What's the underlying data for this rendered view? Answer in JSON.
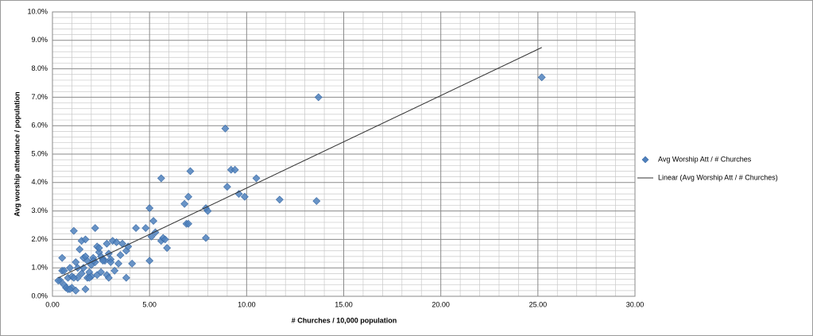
{
  "chart_data": {
    "type": "scatter",
    "xlabel": "# Churches / 10,000 population",
    "ylabel": "Avg worship attendance / population",
    "xlim": [
      0,
      30
    ],
    "ylim": [
      0,
      10
    ],
    "xticks": [
      {
        "value": 0,
        "label": "0.00"
      },
      {
        "value": 5,
        "label": "5.00"
      },
      {
        "value": 10,
        "label": "10.00"
      },
      {
        "value": 15,
        "label": "15.00"
      },
      {
        "value": 20,
        "label": "20.00"
      },
      {
        "value": 25,
        "label": "25.00"
      },
      {
        "value": 30,
        "label": "30.00"
      }
    ],
    "yticks": [
      {
        "value": 0,
        "label": "0.0%"
      },
      {
        "value": 1,
        "label": "1.0%"
      },
      {
        "value": 2,
        "label": "2.0%"
      },
      {
        "value": 3,
        "label": "3.0%"
      },
      {
        "value": 4,
        "label": "4.0%"
      },
      {
        "value": 5,
        "label": "5.0%"
      },
      {
        "value": 6,
        "label": "6.0%"
      },
      {
        "value": 7,
        "label": "7.0%"
      },
      {
        "value": 8,
        "label": "8.0%"
      },
      {
        "value": 9,
        "label": "9.0%"
      },
      {
        "value": 10,
        "label": "10.0%"
      }
    ],
    "grid": true,
    "minor_grid": true,
    "legend": "right",
    "series": [
      {
        "name": "Avg Worship Att / # Churches",
        "type": "scatter",
        "color": "#4f81bd",
        "x": [
          0.4,
          0.5,
          0.5,
          0.6,
          0.7,
          0.8,
          0.8,
          0.9,
          1.0,
          1.0,
          1.1,
          1.2,
          1.2,
          1.3,
          1.4,
          1.5,
          1.5,
          1.6,
          1.6,
          1.7,
          1.7,
          1.8,
          1.8,
          1.9,
          2.0,
          2.0,
          2.1,
          2.2,
          2.2,
          2.3,
          2.3,
          2.4,
          2.5,
          2.5,
          2.6,
          2.7,
          2.8,
          2.8,
          2.9,
          2.9,
          3.0,
          3.1,
          3.2,
          3.3,
          3.4,
          3.5,
          3.6,
          3.8,
          3.8,
          3.9,
          4.1,
          4.3,
          4.8,
          5.0,
          5.0,
          5.1,
          5.2,
          5.3,
          5.6,
          5.6,
          5.7,
          5.8,
          5.9,
          6.8,
          6.9,
          7.0,
          7.0,
          7.1,
          7.9,
          7.9,
          8.0,
          8.9,
          9.0,
          9.2,
          9.4,
          9.6,
          9.9,
          10.5,
          11.7,
          13.6,
          13.7,
          25.2,
          0.3,
          0.6,
          0.9,
          1.3,
          1.7,
          2.1,
          2.4,
          1.9,
          2.6,
          3.0,
          1.1
        ],
        "values": [
          0.55,
          1.35,
          0.9,
          0.4,
          0.3,
          0.25,
          0.65,
          1.0,
          0.7,
          0.3,
          2.3,
          0.2,
          1.2,
          0.65,
          1.65,
          1.95,
          0.8,
          1.0,
          1.35,
          2.0,
          0.25,
          0.65,
          1.25,
          0.85,
          1.1,
          0.7,
          1.35,
          2.4,
          1.2,
          0.75,
          1.75,
          1.55,
          0.85,
          1.4,
          1.3,
          1.25,
          0.75,
          1.85,
          1.5,
          0.65,
          1.3,
          1.95,
          0.9,
          1.9,
          1.15,
          1.45,
          1.85,
          1.6,
          0.65,
          1.75,
          1.15,
          2.4,
          2.4,
          3.1,
          1.25,
          2.1,
          2.65,
          2.25,
          4.15,
          1.95,
          2.05,
          2.0,
          1.7,
          3.25,
          2.55,
          2.55,
          3.5,
          4.4,
          2.05,
          3.1,
          3.0,
          5.9,
          3.85,
          4.45,
          4.45,
          3.6,
          3.5,
          4.15,
          3.4,
          3.35,
          7.0,
          7.7,
          0.55,
          0.9,
          0.25,
          1.0,
          1.4,
          1.25,
          1.7,
          0.65,
          1.25,
          1.2,
          0.65
        ]
      },
      {
        "name": "Linear (Avg Worship Att / # Churches)",
        "type": "line",
        "color": "#333333",
        "x": [
          0.3,
          25.2
        ],
        "values": [
          0.65,
          8.75
        ]
      }
    ]
  }
}
